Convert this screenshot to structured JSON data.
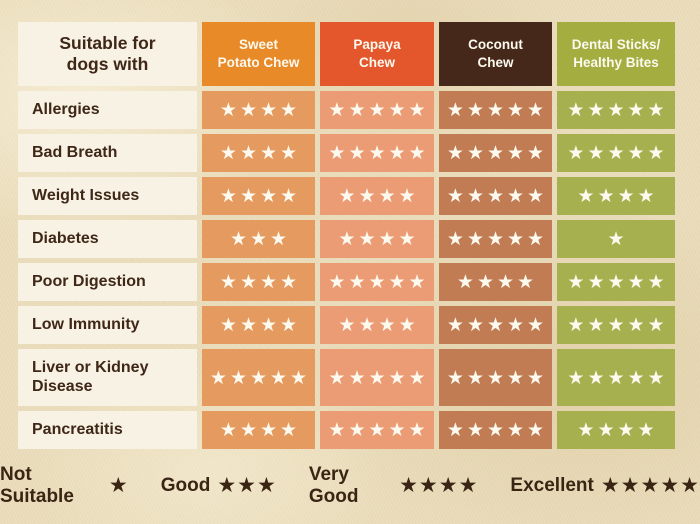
{
  "page": {
    "background_color": "#EBDEBD",
    "text_color": "#3F2718",
    "star_white": "#FCF9EF"
  },
  "table": {
    "title": "Suitable for dogs with",
    "title_lines": [
      "Suitable for",
      "dogs with"
    ],
    "columns": [
      {
        "label": "Sweet Potato Chew",
        "label_lines": [
          "Sweet",
          "Potato Chew"
        ],
        "header_bg": "#E98A28",
        "cell_bg": "#E59A5F"
      },
      {
        "label": "Papaya Chew",
        "label_lines": [
          "Papaya",
          "Chew"
        ],
        "header_bg": "#E4562B",
        "cell_bg": "#EC9C74"
      },
      {
        "label": "Coconut Chew",
        "label_lines": [
          "Coconut",
          "Chew"
        ],
        "header_bg": "#45281A",
        "cell_bg": "#C17C53"
      },
      {
        "label": "Dental Sticks/Healthy Bites",
        "label_lines": [
          "Dental Sticks/",
          "Healthy Bites"
        ],
        "header_bg": "#A3AD40",
        "cell_bg": "#A7B04E"
      }
    ],
    "rows": [
      {
        "label": "Allergies",
        "ratings": [
          4,
          5,
          5,
          5
        ]
      },
      {
        "label": "Bad Breath",
        "ratings": [
          4,
          5,
          5,
          5
        ]
      },
      {
        "label": "Weight Issues",
        "ratings": [
          4,
          4,
          5,
          4
        ]
      },
      {
        "label": "Diabetes",
        "ratings": [
          3,
          4,
          5,
          1
        ]
      },
      {
        "label": "Poor Digestion",
        "ratings": [
          4,
          5,
          4,
          5
        ]
      },
      {
        "label": "Low Immunity",
        "ratings": [
          4,
          4,
          5,
          5
        ]
      },
      {
        "label": "Liver or Kidney Disease",
        "ratings": [
          5,
          5,
          5,
          5
        ]
      },
      {
        "label": "Pancreatitis",
        "ratings": [
          4,
          5,
          5,
          4
        ]
      }
    ]
  },
  "legend": [
    {
      "label": "Not Suitable",
      "stars": 1
    },
    {
      "label": "Good",
      "stars": 3
    },
    {
      "label": "Very Good",
      "stars": 4
    },
    {
      "label": "Excellent",
      "stars": 5
    }
  ],
  "chart_data": {
    "type": "table",
    "title": "Suitable for dogs with",
    "rows": [
      "Allergies",
      "Bad Breath",
      "Weight Issues",
      "Diabetes",
      "Poor Digestion",
      "Low Immunity",
      "Liver or Kidney Disease",
      "Pancreatitis"
    ],
    "columns": [
      "Sweet Potato Chew",
      "Papaya Chew",
      "Coconut Chew",
      "Dental Sticks/Healthy Bites"
    ],
    "values_stars": [
      [
        4,
        5,
        5,
        5
      ],
      [
        4,
        5,
        5,
        5
      ],
      [
        4,
        4,
        5,
        4
      ],
      [
        3,
        4,
        5,
        1
      ],
      [
        4,
        5,
        4,
        5
      ],
      [
        4,
        4,
        5,
        5
      ],
      [
        5,
        5,
        5,
        5
      ],
      [
        4,
        5,
        5,
        4
      ]
    ],
    "rating_scale": {
      "1": "Not Suitable",
      "3": "Good",
      "4": "Very Good",
      "5": "Excellent"
    },
    "legend_position": "bottom"
  }
}
